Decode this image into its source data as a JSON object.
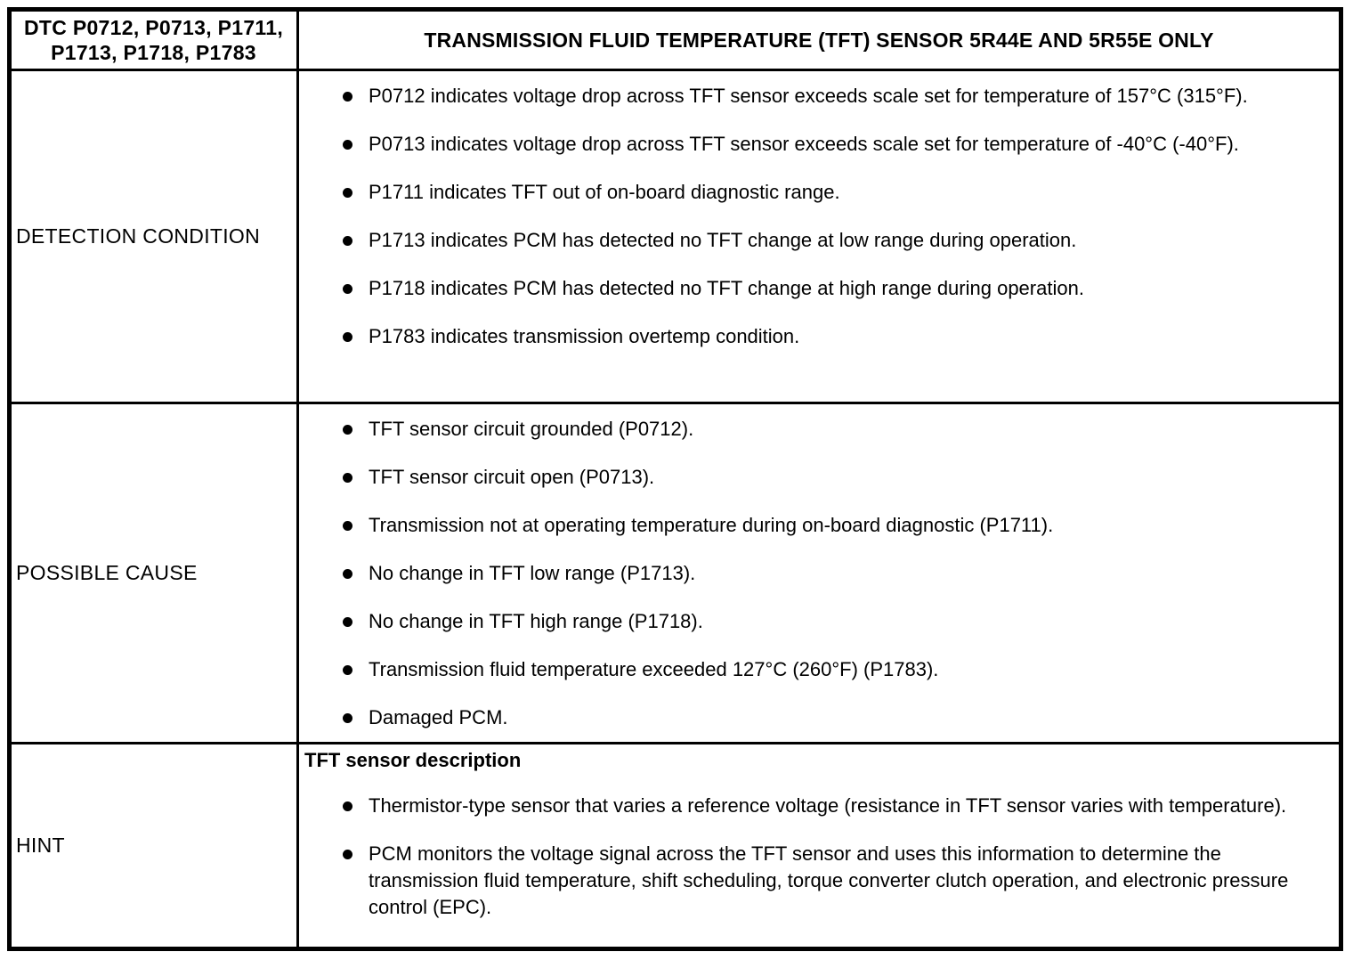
{
  "table": {
    "header": {
      "dtc_codes": "DTC P0712, P0713, P1711,\nP1713, P1718, P1783",
      "title": "TRANSMISSION FLUID TEMPERATURE (TFT) SENSOR 5R44E AND 5R55E ONLY"
    },
    "rows": [
      {
        "label": "DETECTION CONDITION",
        "bullets": [
          "P0712 indicates voltage drop across TFT sensor exceeds scale set for temperature of 157°C (315°F).",
          "P0713 indicates voltage drop across TFT sensor exceeds scale set for temperature of -40°C (-40°F).",
          "P1711 indicates TFT out of on-board diagnostic range.",
          "P1713 indicates PCM has detected no TFT change at low range during operation.",
          "P1718 indicates PCM has detected no TFT change at high range during operation.",
          "P1783 indicates transmission overtemp condition."
        ]
      },
      {
        "label": "POSSIBLE CAUSE",
        "bullets": [
          "TFT sensor circuit grounded (P0712).",
          "TFT sensor circuit open (P0713).",
          "Transmission not at operating temperature during on-board diagnostic (P1711).",
          "No change in TFT low range (P1713).",
          "No change in TFT high range (P1718).",
          "Transmission fluid temperature exceeded 127°C (260°F) (P1783).",
          "Damaged PCM."
        ]
      },
      {
        "label": "HINT",
        "subheading": "TFT sensor description",
        "bullets": [
          "Thermistor-type sensor that varies a reference voltage (resistance in TFT sensor varies with temperature).",
          "PCM monitors the voltage signal across the TFT sensor and uses this information to determine the transmission fluid temperature, shift scheduling, torque converter clutch operation, and electronic pressure control (EPC)."
        ]
      }
    ]
  }
}
